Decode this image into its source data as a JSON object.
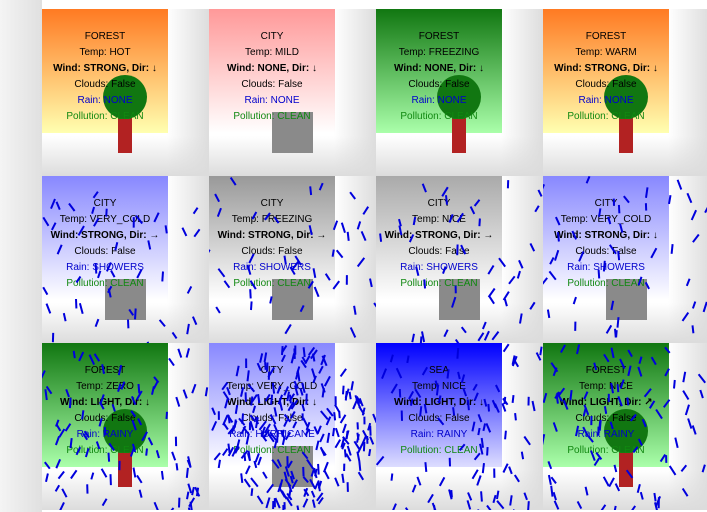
{
  "tiles": [
    {
      "type": "FOREST",
      "temp": "Temp: HOT",
      "wind": "Wind: STRONG, Dir: ↓",
      "clouds": "Clouds: False",
      "rain": "Rain: NONE",
      "pollution": "Pollution: CLEAN",
      "sky_top": "#ff7a22",
      "sky_bottom": "#ffffb0",
      "rain_level": 0
    },
    {
      "type": "CITY",
      "temp": "Temp: MILD",
      "wind": "Wind: NONE, Dir: ↓",
      "clouds": "Clouds: False",
      "rain": "Rain: NONE",
      "pollution": "Pollution: CLEAN",
      "sky_top": "#ff9999",
      "sky_bottom": "#ffffff",
      "rain_level": 0
    },
    {
      "type": "FOREST",
      "temp": "Temp: FREEZING",
      "wind": "Wind: NONE, Dir: ↓",
      "clouds": "Clouds: False",
      "rain": "Rain: NONE",
      "pollution": "Pollution: CLEAN",
      "sky_top": "#117711",
      "sky_bottom": "#aaffaa",
      "rain_level": 0
    },
    {
      "type": "FOREST",
      "temp": "Temp: WARM",
      "wind": "Wind: STRONG, Dir: ↓",
      "clouds": "Clouds: False",
      "rain": "Rain: NONE",
      "pollution": "Pollution: CLEAN",
      "sky_top": "#ff7a22",
      "sky_bottom": "#ffffb0",
      "rain_level": 0
    },
    {
      "type": "CITY",
      "temp": "Temp: VERY_COLD",
      "wind": "Wind: STRONG, Dir: →",
      "clouds": "Clouds: False",
      "rain": "Rain: SHOWERS",
      "pollution": "Pollution: CLEAN",
      "sky_top": "#8888ff",
      "sky_bottom": "#ffffff",
      "rain_level": 1
    },
    {
      "type": "CITY",
      "temp": "Temp: FREEZING",
      "wind": "Wind: STRONG, Dir: →",
      "clouds": "Clouds: False",
      "rain": "Rain: SHOWERS",
      "pollution": "Pollution: CLEAN",
      "sky_top": "#999999",
      "sky_bottom": "#ffffff",
      "rain_level": 1
    },
    {
      "type": "CITY",
      "temp": "Temp: NICE",
      "wind": "Wind: STRONG, Dir: →",
      "clouds": "Clouds: False",
      "rain": "Rain: SHOWERS",
      "pollution": "Pollution: CLEAN",
      "sky_top": "#aaaaaa",
      "sky_bottom": "#ffffff",
      "rain_level": 1
    },
    {
      "type": "CITY",
      "temp": "Temp: VERY_COLD",
      "wind": "Wind: STRONG, Dir: ↓",
      "clouds": "Clouds: False",
      "rain": "Rain: SHOWERS",
      "pollution": "Pollution: CLEAN",
      "sky_top": "#8888ff",
      "sky_bottom": "#ffffff",
      "rain_level": 1
    },
    {
      "type": "FOREST",
      "temp": "Temp: ZERO",
      "wind": "Wind: LIGHT, Dir: ↓",
      "clouds": "Clouds: False",
      "rain": "Rain: RAINY",
      "pollution": "Pollution: CLEAN",
      "sky_top": "#117711",
      "sky_bottom": "#aaffaa",
      "rain_level": 2
    },
    {
      "type": "CITY",
      "temp": "Temp: VERY_COLD",
      "wind": "Wind: LIGHT, Dir: ↓",
      "clouds": "Clouds: False",
      "rain": "Rain: HURRICANE",
      "pollution": "Pollution: CLEAN",
      "sky_top": "#8888ff",
      "sky_bottom": "#ffffff",
      "rain_level": 3
    },
    {
      "type": "SEA",
      "temp": "Temp: NICE",
      "wind": "Wind: LIGHT, Dir: ↓",
      "clouds": "Clouds: False",
      "rain": "Rain: RAINY",
      "pollution": "Pollution: CLEAN",
      "sky_top": "#0000ff",
      "sky_bottom": "#ddddff",
      "rain_level": 2
    },
    {
      "type": "FOREST",
      "temp": "Temp: NICE",
      "wind": "Wind: LIGHT, Dir: ↗",
      "clouds": "Clouds: False",
      "rain": "Rain: RAINY",
      "pollution": "Pollution: CLEAN",
      "sky_top": "#117711",
      "sky_bottom": "#aaffaa",
      "rain_level": 2
    }
  ],
  "colors": {
    "rain_drop": "#0000dd",
    "tree_trunk": "#b22222",
    "tree_crown": "#117711",
    "building": "#8a8a8a",
    "text_rain": "#0000cc",
    "text_pollution": "#118811"
  }
}
